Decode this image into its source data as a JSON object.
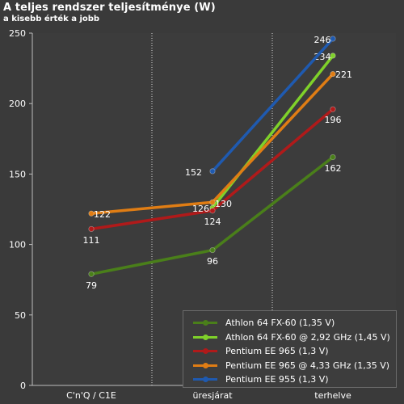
{
  "chart_data": {
    "type": "line",
    "title": "A teljes rendszer teljesítménye (W)",
    "subtitle": "a kisebb érték a jobb",
    "categories": [
      "C'n'Q / C1E",
      "üresjárat",
      "terhelve"
    ],
    "ylim": [
      0,
      250
    ],
    "yticks": [
      0,
      50,
      100,
      150,
      200,
      250
    ],
    "grid": false,
    "legend_position": "bottom-right",
    "series": [
      {
        "name": "Athlon 64 FX-60 (1,35 V)",
        "color": "#4a7f1a",
        "values": [
          79,
          96,
          162
        ],
        "labels": [
          "79",
          "96",
          "162"
        ]
      },
      {
        "name": "Athlon 64 FX-60 @ 2,92 GHz (1,45 V)",
        "color": "#7fd12a",
        "values": [
          null,
          126,
          234
        ],
        "labels": [
          "",
          "",
          "234"
        ]
      },
      {
        "name": "Pentium EE 965 (1,3 V)",
        "color": "#b01a1a",
        "values": [
          111,
          124,
          196
        ],
        "labels": [
          "111",
          "124",
          "196"
        ]
      },
      {
        "name": "Pentium EE 965 @ 4,33 GHz (1,35 V)",
        "color": "#e07d14",
        "values": [
          122,
          130,
          221
        ],
        "labels": [
          "122",
          "130",
          "221"
        ]
      },
      {
        "name": "Pentium EE 955 (1,3 V)",
        "color": "#1f5ab0",
        "values": [
          null,
          152,
          246
        ],
        "labels": [
          "",
          "152",
          "246"
        ]
      }
    ],
    "extra_labels": [
      {
        "series": 1,
        "category": 1,
        "text": "126"
      }
    ]
  }
}
